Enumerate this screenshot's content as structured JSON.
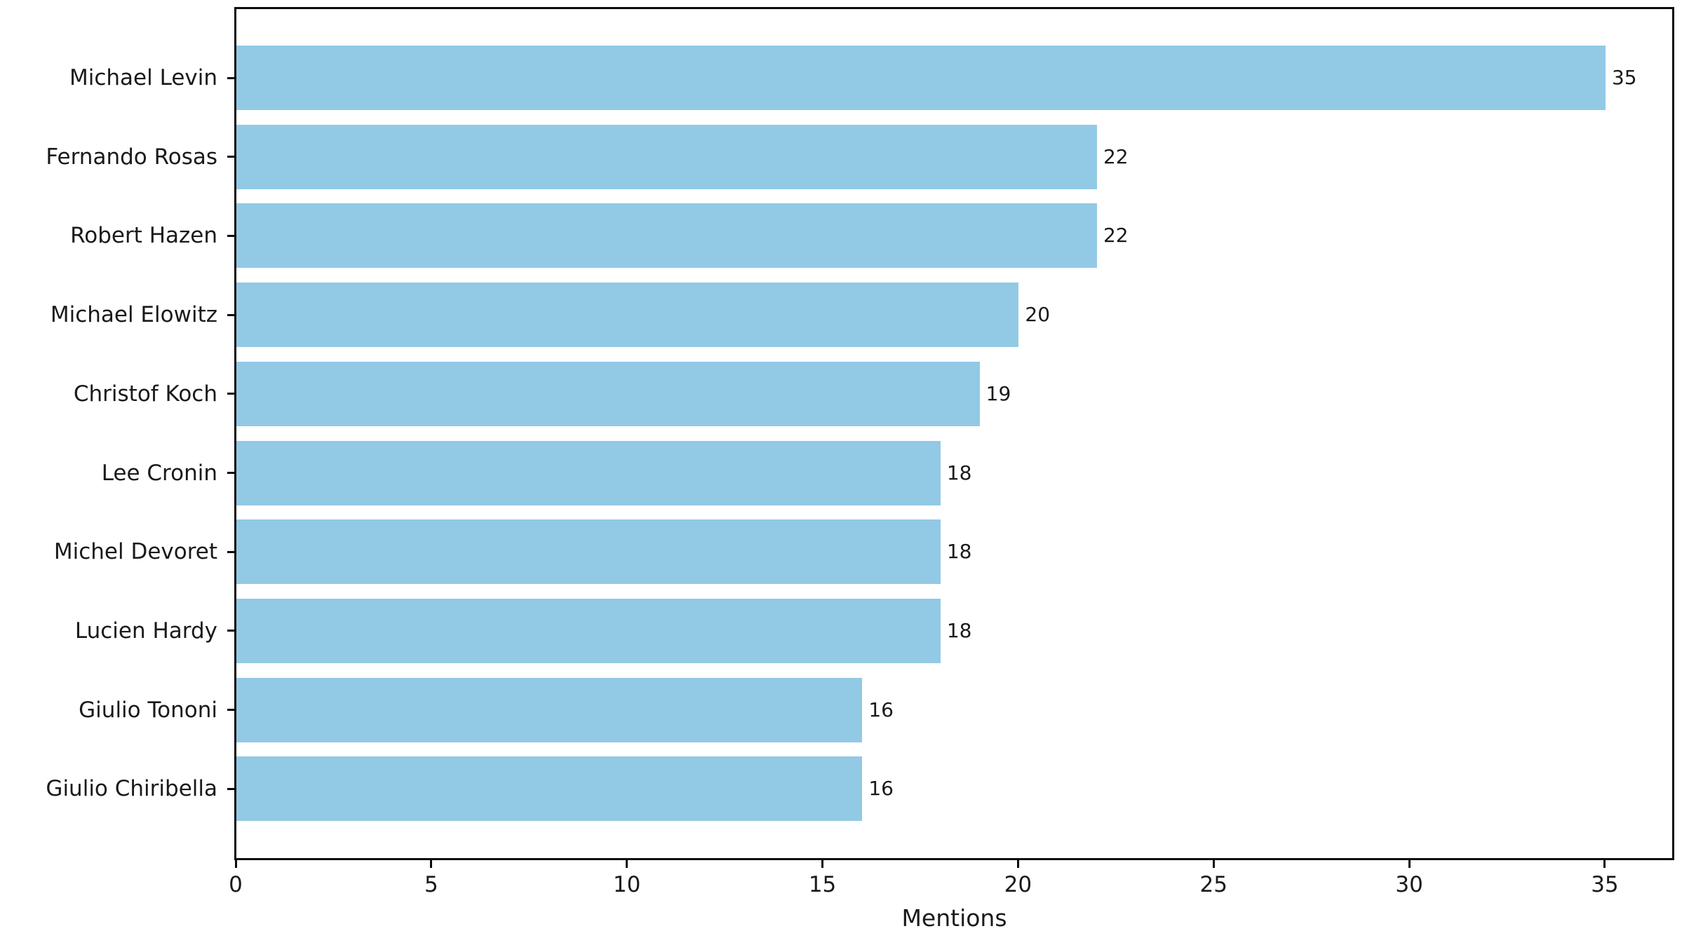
{
  "chart_data": {
    "type": "bar",
    "orientation": "horizontal",
    "title": "",
    "xlabel": "Mentions",
    "ylabel": "",
    "categories": [
      "Michael Levin",
      "Fernando Rosas",
      "Robert Hazen",
      "Michael Elowitz",
      "Christof Koch",
      "Lee Cronin",
      "Michel Devoret",
      "Lucien Hardy",
      "Giulio Tononi",
      "Giulio Chiribella"
    ],
    "values": [
      35,
      22,
      22,
      20,
      19,
      18,
      18,
      18,
      16,
      16
    ],
    "bar_value_labels": [
      "35",
      "22",
      "22",
      "20",
      "19",
      "18",
      "18",
      "18",
      "16",
      "16"
    ],
    "xticks": [
      0,
      5,
      10,
      15,
      20,
      25,
      30,
      35
    ],
    "xtick_labels": [
      "0",
      "5",
      "10",
      "15",
      "20",
      "25",
      "30",
      "35"
    ],
    "xlim": [
      0,
      36.74
    ],
    "grid": false,
    "legend": null,
    "colors": {
      "bar_fill": "#92c9e5",
      "axis": "#0b0b0b",
      "text": "#1a1a1a",
      "background": "#ffffff"
    }
  }
}
